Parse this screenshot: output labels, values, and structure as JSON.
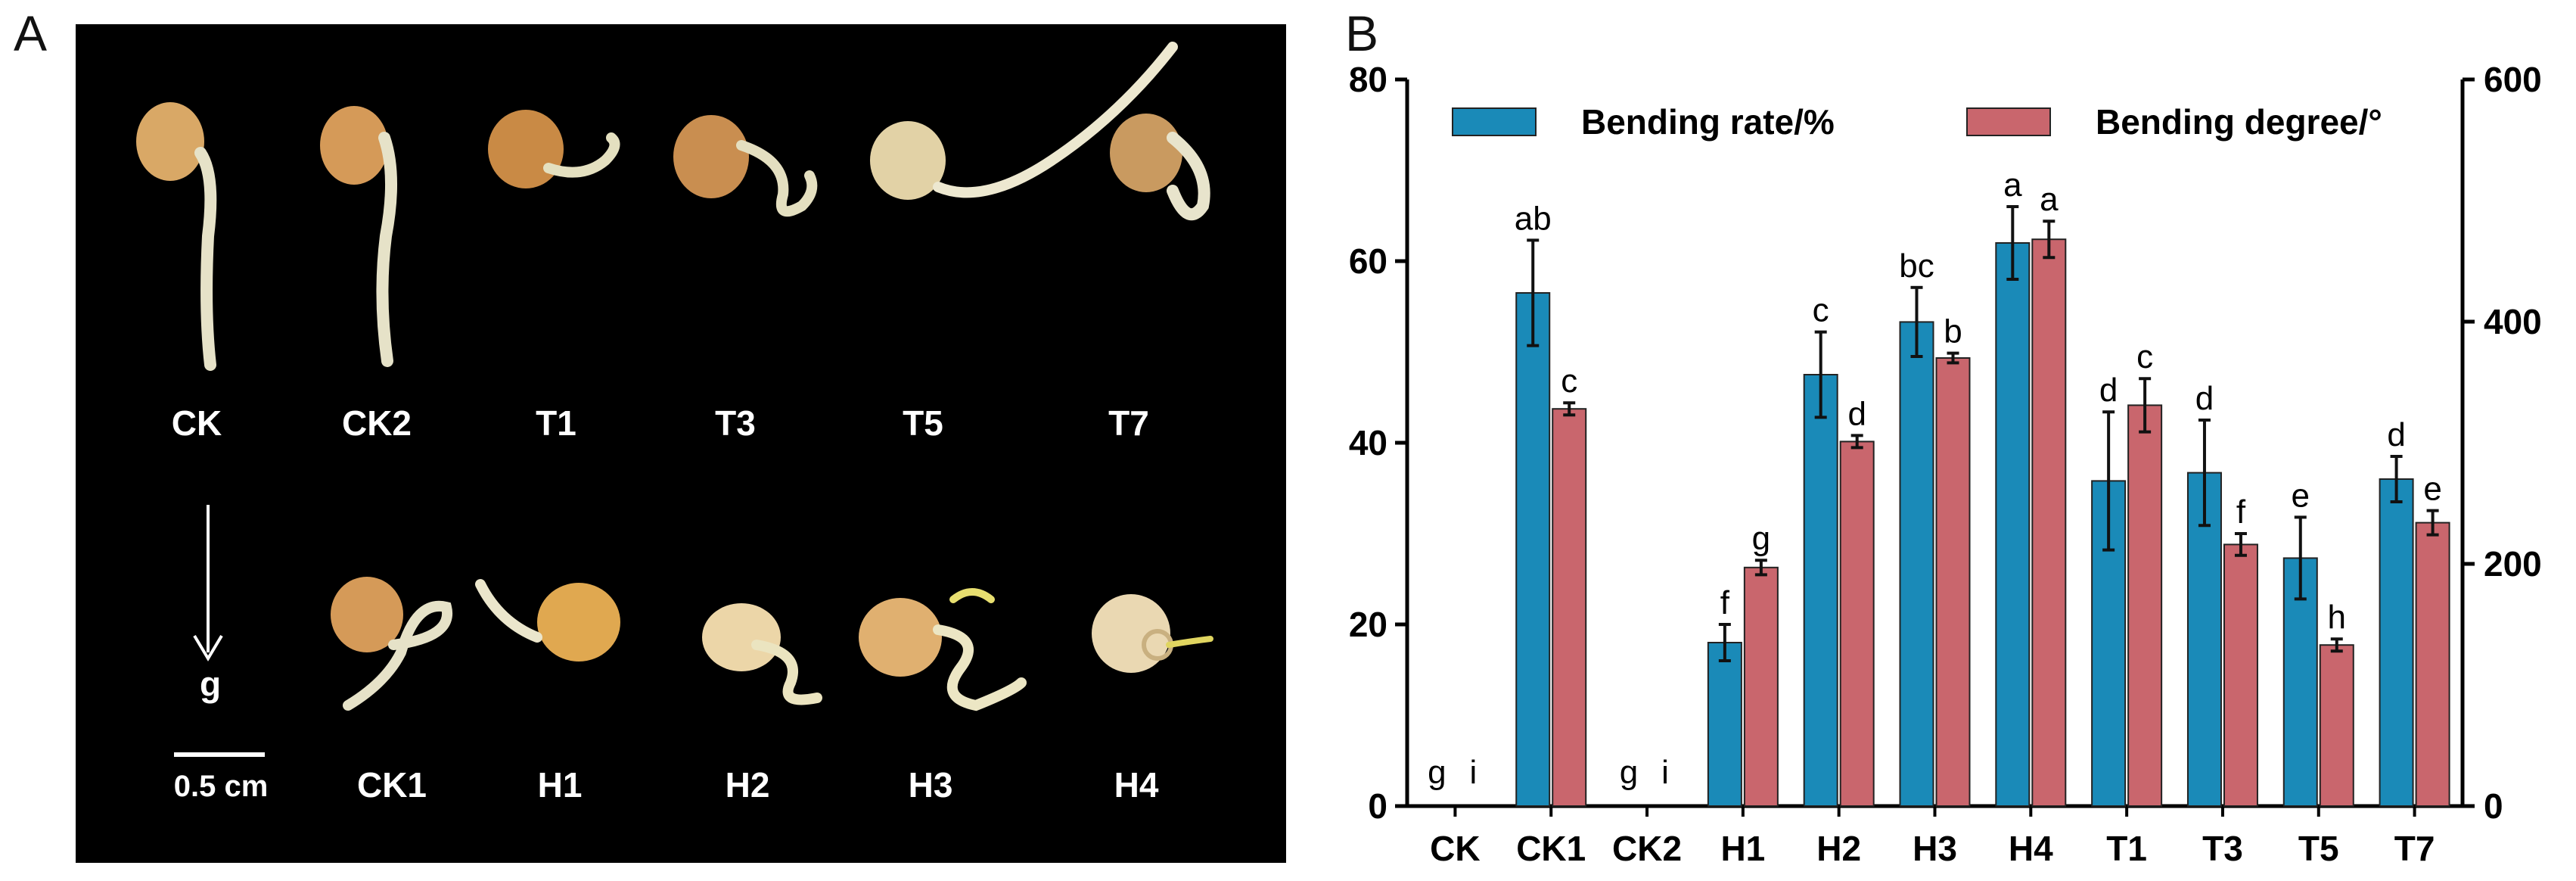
{
  "panel_a": {
    "letter": "A",
    "top_labels": [
      "CK",
      "CK2",
      "T1",
      "T3",
      "T5",
      "T7"
    ],
    "bottom_labels": [
      "CK1",
      "H1",
      "H2",
      "H3",
      "H4"
    ],
    "gravity_label": "g",
    "scale_label": "0.5 cm"
  },
  "panel_b": {
    "letter": "B"
  },
  "colors": {
    "bending_rate": "#1a8ab8",
    "bending_degree": "#c9666d",
    "panel_bg": "#000000",
    "seed": "#d4a060",
    "root": "#e8e4c8"
  },
  "chart_data": {
    "type": "bar",
    "categories": [
      "CK",
      "CK1",
      "CK2",
      "H1",
      "H2",
      "H3",
      "H4",
      "T1",
      "T3",
      "T5",
      "T7"
    ],
    "legend": [
      "Bending rate/%",
      "Bending degree/°"
    ],
    "legend_position": "top",
    "y_left": {
      "ylim": [
        0,
        80
      ],
      "ticks": [
        "0",
        "20",
        "40",
        "60",
        "80"
      ]
    },
    "y_right": {
      "ylim": [
        0,
        600
      ],
      "ticks": [
        "0",
        "200",
        "400",
        "600"
      ]
    },
    "series": [
      {
        "name": "Bending rate/%",
        "axis": "left",
        "values": [
          0,
          56.5,
          0,
          18,
          47.5,
          53.3,
          62,
          35.8,
          36.7,
          27.3,
          36
        ],
        "errors": [
          0,
          5.8,
          0,
          2,
          4.7,
          3.8,
          4,
          7.6,
          5.8,
          4.5,
          2.5
        ],
        "labels": [
          "g",
          "ab",
          "g",
          "f",
          "c",
          "bc",
          "a",
          "d",
          "d",
          "e",
          "d"
        ]
      },
      {
        "name": "Bending degree/°",
        "axis": "right",
        "values": [
          0,
          328,
          0,
          197,
          301,
          370,
          468,
          331,
          216,
          133,
          234
        ],
        "errors": [
          0,
          5,
          0,
          6,
          5,
          4,
          15,
          22,
          9,
          5,
          10
        ],
        "labels": [
          "i",
          "c",
          "i",
          "g",
          "d",
          "b",
          "a",
          "c",
          "f",
          "h",
          "e"
        ]
      }
    ]
  }
}
